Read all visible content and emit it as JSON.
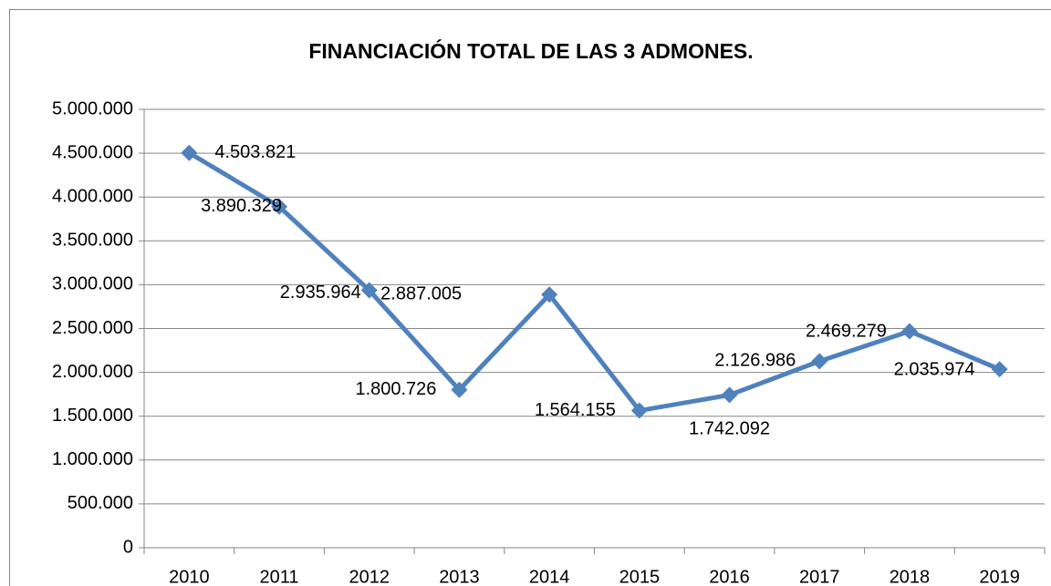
{
  "chart_data": {
    "type": "line",
    "title": "FINANCIACIÓN TOTAL DE LAS 3 ADMONES.",
    "categories": [
      "2010",
      "2011",
      "2012",
      "2013",
      "2014",
      "2015",
      "2016",
      "2017",
      "2018",
      "2019"
    ],
    "series": [
      {
        "name": "Financiación total",
        "color": "#4f81bd",
        "values": [
          4503821,
          3890329,
          2935964,
          1800726,
          2887005,
          1564155,
          1742092,
          2126986,
          2469279,
          2035974
        ],
        "value_labels": [
          "4.503.821",
          "3.890.329",
          "2.935.964",
          "1.800.726",
          "2.887.005",
          "1.564.155",
          "1.742.092",
          "2.126.986",
          "2.469.279",
          "2.035.974"
        ]
      }
    ],
    "ylim": [
      0,
      5000000
    ],
    "yticks": [
      0,
      {
        "value": 500000,
        "label": "500.000"
      },
      {
        "value": 1000000,
        "label": "1.000.000"
      },
      {
        "value": 1500000,
        "label": "1.500.000"
      },
      {
        "value": 2000000,
        "label": "2.000.000"
      },
      {
        "value": 2500000,
        "label": "2.500.000"
      },
      {
        "value": 3000000,
        "label": "3.000.000"
      },
      {
        "value": 3500000,
        "label": "3.500.000"
      },
      {
        "value": 4000000,
        "label": "4.000.000"
      },
      {
        "value": 4500000,
        "label": "4.500.000"
      },
      {
        "value": 5000000,
        "label": "5.000.000"
      }
    ],
    "grid": true
  }
}
